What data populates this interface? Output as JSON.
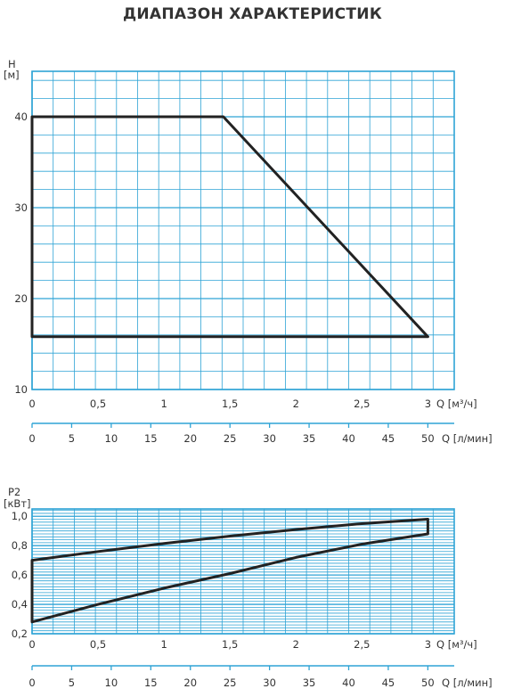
{
  "title": "ДИАПАЗОН ХАРАКТЕРИСТИК",
  "colors": {
    "grid": "#2ea3d5",
    "curve": "#222222",
    "text": "#333333"
  },
  "chart_data": [
    {
      "type": "line",
      "ylabel": "H",
      "yunit": "[м]",
      "xlabel": "Q [м³/ч]",
      "x2label": "Q [л/мин]",
      "xlim": [
        0,
        3.2
      ],
      "ylim": [
        10,
        45
      ],
      "x_ticks": [
        "0",
        "0,5",
        "1",
        "1,5",
        "2",
        "2,5",
        "3"
      ],
      "x_tick_values": [
        0,
        0.5,
        1,
        1.5,
        2,
        2.5,
        3
      ],
      "y_ticks": [
        "10",
        "20",
        "30",
        "40"
      ],
      "y_tick_values": [
        10,
        20,
        30,
        40
      ],
      "x2_ticks": [
        "0",
        "5",
        "10",
        "15",
        "20",
        "25",
        "30",
        "35",
        "40",
        "45",
        "50"
      ],
      "x2_tick_values": [
        0,
        5,
        10,
        15,
        20,
        25,
        30,
        35,
        40,
        45,
        50
      ],
      "series": [
        {
          "points": [
            [
              0,
              15.8
            ],
            [
              0,
              40
            ],
            [
              1.45,
              40
            ],
            [
              3.0,
              15.8
            ],
            [
              0,
              15.8
            ]
          ]
        }
      ],
      "grid": true
    },
    {
      "type": "line",
      "ylabel": "P2",
      "yunit": "[кВт]",
      "xlabel": "Q [м³/ч]",
      "x2label": "Q [л/мин]",
      "xlim": [
        0,
        3.2
      ],
      "ylim": [
        0.2,
        1.05
      ],
      "x_ticks": [
        "0",
        "0,5",
        "1",
        "1,5",
        "2",
        "2,5",
        "3"
      ],
      "x_tick_values": [
        0,
        0.5,
        1,
        1.5,
        2,
        2.5,
        3
      ],
      "y_ticks": [
        "0,2",
        "0,4",
        "0,6",
        "0,8",
        "1,0"
      ],
      "y_tick_values": [
        0.2,
        0.4,
        0.6,
        0.8,
        1.0
      ],
      "x2_ticks": [
        "0",
        "5",
        "10",
        "15",
        "20",
        "25",
        "30",
        "35",
        "40",
        "45",
        "50"
      ],
      "x2_tick_values": [
        0,
        5,
        10,
        15,
        20,
        25,
        30,
        35,
        40,
        45,
        50
      ],
      "series": [
        {
          "points": [
            [
              0,
              0.28
            ],
            [
              0,
              0.7
            ],
            [
              0.5,
              0.76
            ],
            [
              1.0,
              0.815
            ],
            [
              1.5,
              0.865
            ],
            [
              2.0,
              0.91
            ],
            [
              2.5,
              0.95
            ],
            [
              3.0,
              0.98
            ],
            [
              3.0,
              0.88
            ],
            [
              2.5,
              0.81
            ],
            [
              2.0,
              0.72
            ],
            [
              1.5,
              0.61
            ],
            [
              1.0,
              0.51
            ],
            [
              0.5,
              0.4
            ],
            [
              0,
              0.28
            ]
          ]
        }
      ],
      "grid": true
    }
  ]
}
